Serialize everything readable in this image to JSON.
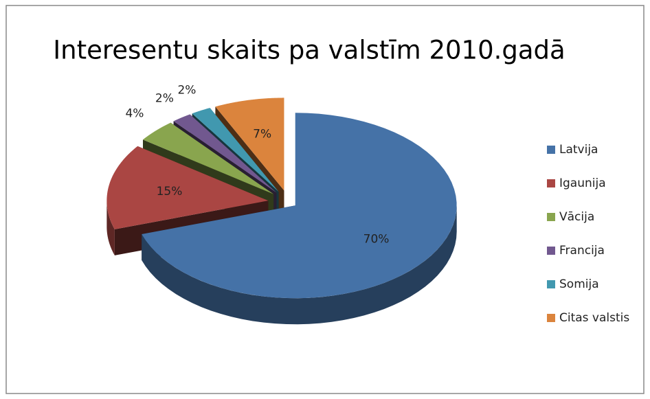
{
  "chart_data": {
    "type": "pie",
    "title": "Interesentu skaits pa valstīm 2010.gadā",
    "categories": [
      "Latvija",
      "Igaunija",
      "Vācija",
      "Francija",
      "Somija",
      "Citas valstis"
    ],
    "values": [
      70,
      15,
      4,
      2,
      2,
      7
    ],
    "value_labels": [
      "70%",
      "15%",
      "4%",
      "2%",
      "2%",
      "7%"
    ],
    "colors": [
      "#4572a7",
      "#aa4643",
      "#89a54e",
      "#71588f",
      "#4198af",
      "#db843d"
    ],
    "legend": "right"
  }
}
